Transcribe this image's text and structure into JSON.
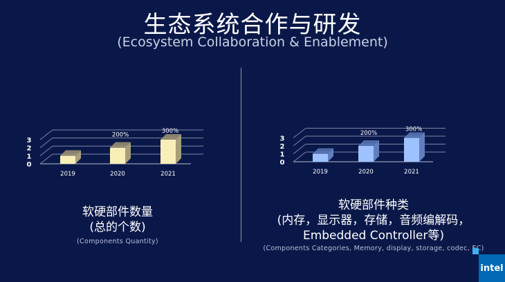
{
  "header": {
    "title": "生态系统合作与研发",
    "subtitle": "(Ecosystem Collaboration & Enablement)"
  },
  "colors": {
    "background": "#0a1849",
    "left_bar": "#f8eeb8",
    "left_bar_side": "#a89e78",
    "right_bar": "#9ec2ff",
    "right_bar_side": "#5f7fc0"
  },
  "chart_data": [
    {
      "type": "bar",
      "title": "软硬部件数量",
      "categories": [
        "2019",
        "2020",
        "2021"
      ],
      "values": [
        1,
        2,
        3
      ],
      "data_labels": [
        "",
        "200%",
        "300%"
      ],
      "yticks": [
        "0",
        "1",
        "2",
        "3"
      ],
      "ylim": [
        0,
        3
      ],
      "grid": true
    },
    {
      "type": "bar",
      "title": "软硬部件种类",
      "categories": [
        "2019",
        "2020",
        "2021"
      ],
      "values": [
        1,
        2,
        3
      ],
      "data_labels": [
        "",
        "200%",
        "300%"
      ],
      "yticks": [
        "0",
        "1",
        "2",
        "3"
      ],
      "ylim": [
        0,
        3
      ],
      "grid": true
    }
  ],
  "captions": {
    "left": {
      "line1": "软硬部件数量",
      "line2": "(总的个数)",
      "en": "(Components Quantity)"
    },
    "right": {
      "line1": "软硬部件种类",
      "line2": "(内存，显示器，存储，音频编解码，",
      "line3": "Embedded Controller等)",
      "en": "(Components Categories, Memory, display, storage, codec, EC)"
    }
  },
  "logo": {
    "text": "intel"
  }
}
